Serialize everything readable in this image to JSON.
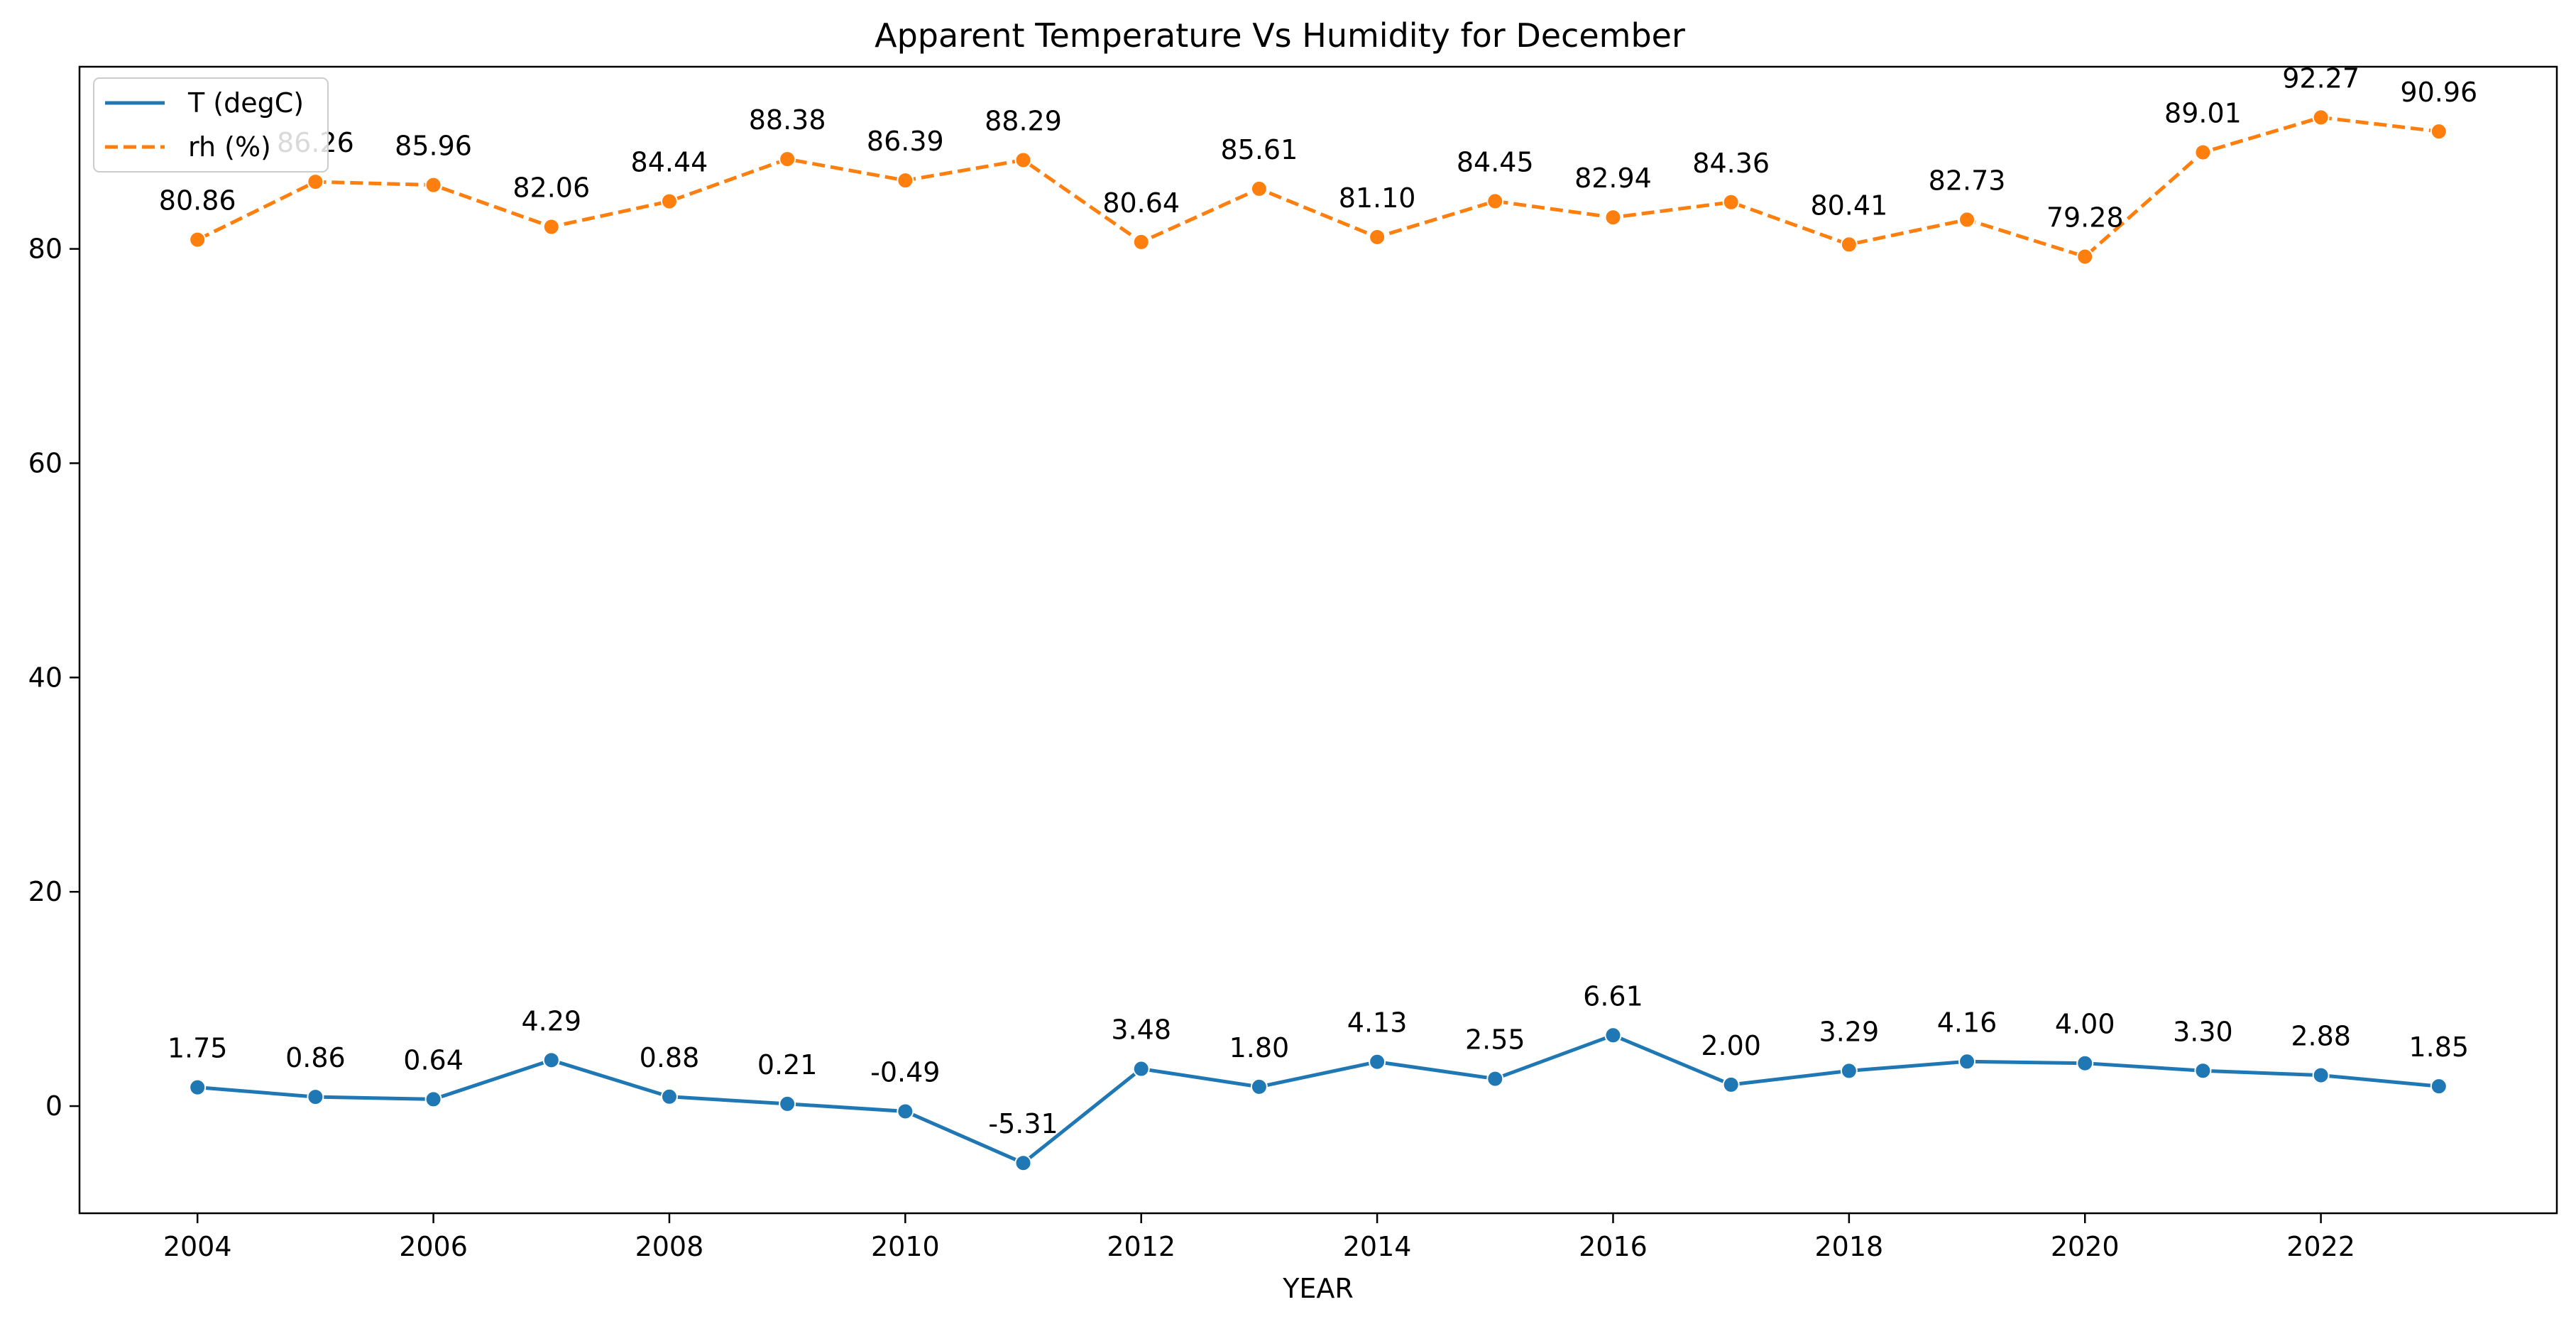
{
  "chart_data": {
    "type": "line",
    "title": "Apparent Temperature Vs Humidity for December",
    "xlabel": "YEAR",
    "ylabel": "",
    "x": [
      2004,
      2005,
      2006,
      2007,
      2008,
      2009,
      2010,
      2011,
      2012,
      2013,
      2014,
      2015,
      2016,
      2017,
      2018,
      2019,
      2020,
      2021,
      2022,
      2023
    ],
    "xlim": [
      2003,
      2024
    ],
    "ylim": [
      -10,
      97
    ],
    "xticks": [
      "2004",
      "2006",
      "2008",
      "2010",
      "2012",
      "2014",
      "2016",
      "2018",
      "2020",
      "2022"
    ],
    "yticks": [
      "0",
      "20",
      "40",
      "60",
      "80"
    ],
    "grid": false,
    "legend_position": "top-left",
    "series": [
      {
        "name": "T (degC)",
        "color": "#1f77b4",
        "line_style": "solid",
        "values": [
          1.75,
          0.86,
          0.64,
          4.29,
          0.88,
          0.21,
          -0.49,
          -5.31,
          3.48,
          1.8,
          4.13,
          2.55,
          6.61,
          2.0,
          3.29,
          4.16,
          4.0,
          3.3,
          2.88,
          1.85
        ],
        "labels": [
          "1.75",
          "0.86",
          "0.64",
          "4.29",
          "0.88",
          "0.21",
          "-0.49",
          "-5.31",
          "3.48",
          "1.80",
          "4.13",
          "2.55",
          "6.61",
          "2.00",
          "3.29",
          "4.16",
          "4.00",
          "3.30",
          "2.88",
          "1.85"
        ]
      },
      {
        "name": "rh (%)",
        "color": "#ff7f0e",
        "line_style": "dashed",
        "values": [
          80.86,
          86.26,
          85.96,
          82.06,
          84.44,
          88.38,
          86.39,
          88.29,
          80.64,
          85.61,
          81.1,
          84.45,
          82.94,
          84.36,
          80.41,
          82.73,
          79.28,
          89.01,
          92.27,
          90.96
        ],
        "labels": [
          "80.86",
          "86.26",
          "85.96",
          "82.06",
          "84.44",
          "88.38",
          "86.39",
          "88.29",
          "80.64",
          "85.61",
          "81.10",
          "84.45",
          "82.94",
          "84.36",
          "80.41",
          "82.73",
          "79.28",
          "89.01",
          "92.27",
          "90.96"
        ]
      }
    ]
  }
}
